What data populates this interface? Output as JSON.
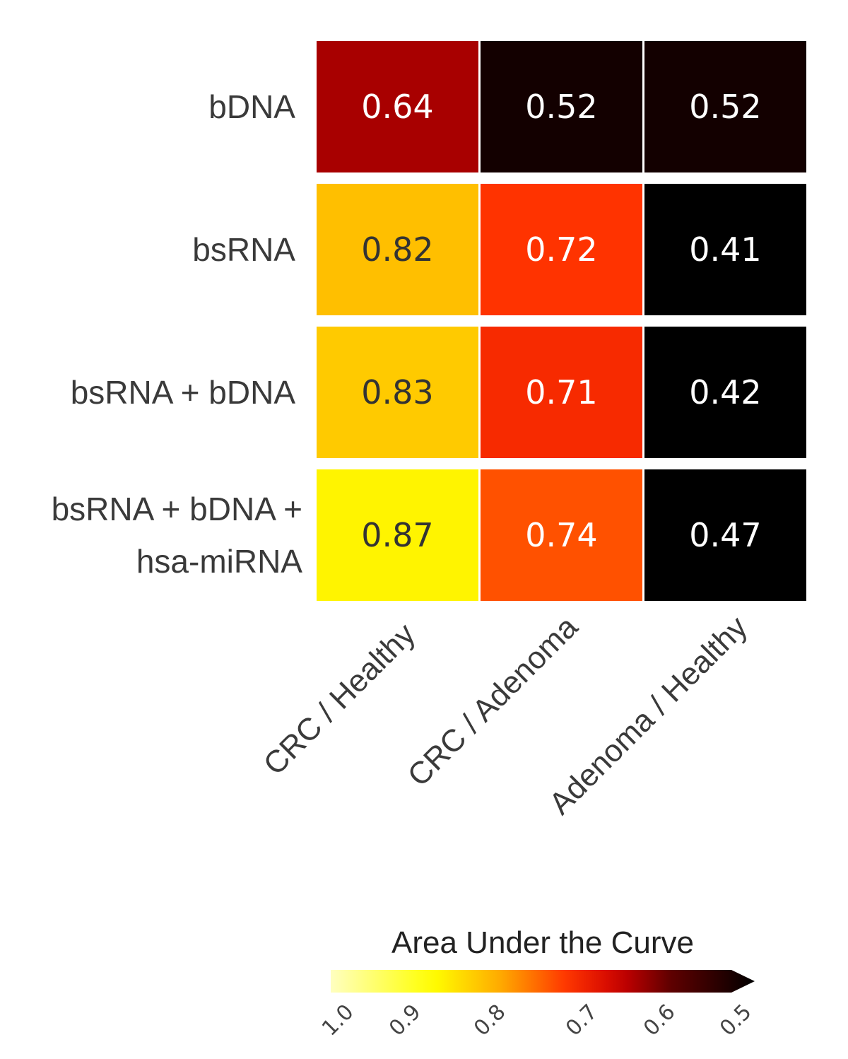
{
  "chart_data": {
    "type": "heatmap",
    "rows": [
      [
        "bDNA"
      ],
      [
        "bsRNA"
      ],
      [
        "bsRNA + bDNA"
      ],
      [
        "bsRNA + bDNA +",
        "hsa-miRNA"
      ]
    ],
    "columns": [
      "CRC / Healthy",
      "CRC / Adenoma",
      "Adenoma / Healthy"
    ],
    "values": [
      [
        0.64,
        0.52,
        0.52
      ],
      [
        0.82,
        0.72,
        0.41
      ],
      [
        0.83,
        0.71,
        0.42
      ],
      [
        0.87,
        0.74,
        0.47
      ]
    ],
    "cell_labels": [
      [
        "0.64",
        "0.52",
        "0.52"
      ],
      [
        "0.82",
        "0.72",
        "0.41"
      ],
      [
        "0.83",
        "0.71",
        "0.42"
      ],
      [
        "0.87",
        "0.74",
        "0.47"
      ]
    ],
    "colorbar": {
      "title": "Area Under the Curve",
      "range": [
        1.0,
        0.5
      ],
      "ticks": [
        1.0,
        0.9,
        0.8,
        0.7,
        0.6,
        0.5
      ],
      "tick_labels": [
        "1.0",
        "0.9",
        "0.8",
        "0.7",
        "0.6",
        "0.5"
      ],
      "placement": "bottom",
      "orientation": "horizontal",
      "extend": "low"
    },
    "colormap": {
      "name": "hot",
      "stops": [
        {
          "value": 1.0,
          "color": "#ffffc0"
        },
        {
          "value": 0.88,
          "color": "#ffff00"
        },
        {
          "value": 0.8,
          "color": "#ffaa00"
        },
        {
          "value": 0.72,
          "color": "#ff3300"
        },
        {
          "value": 0.66,
          "color": "#cc0000"
        },
        {
          "value": 0.6,
          "color": "#600000"
        },
        {
          "value": 0.5,
          "color": "#000000"
        }
      ],
      "light_text_color": "#ffffff",
      "dark_text_color": "#333333"
    },
    "gridlines": false
  }
}
